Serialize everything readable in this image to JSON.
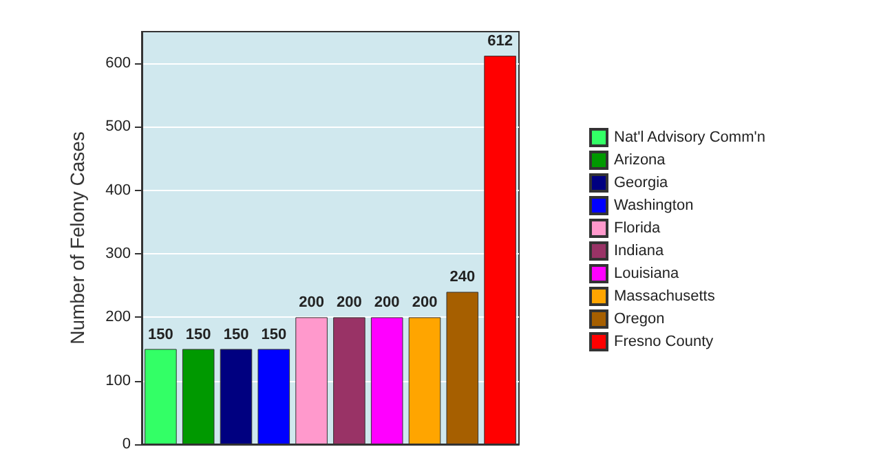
{
  "chart_data": {
    "type": "bar",
    "ylabel": "Number of Felony Cases",
    "categories": [
      null,
      null,
      null,
      null,
      null,
      null,
      null,
      null,
      null,
      null
    ],
    "series": [
      {
        "name": "Nat'l Advisory Comm'n",
        "color": "#33ff66",
        "values": [
          150,
          null,
          null,
          null,
          null,
          null,
          null,
          null,
          null,
          null
        ]
      },
      {
        "name": "Arizona",
        "color": "#009900",
        "values": [
          null,
          150,
          null,
          null,
          null,
          null,
          null,
          null,
          null,
          null
        ]
      },
      {
        "name": "Georgia",
        "color": "#000080",
        "values": [
          null,
          null,
          150,
          null,
          null,
          null,
          null,
          null,
          null,
          null
        ]
      },
      {
        "name": "Washington",
        "color": "#0000ff",
        "values": [
          null,
          null,
          null,
          150,
          null,
          null,
          null,
          null,
          null,
          null
        ]
      },
      {
        "name": "Florida",
        "color": "#ff99cc",
        "values": [
          null,
          null,
          null,
          null,
          200,
          null,
          null,
          null,
          null,
          null
        ]
      },
      {
        "name": "Indiana",
        "color": "#993366",
        "values": [
          null,
          null,
          null,
          null,
          null,
          200,
          null,
          null,
          null,
          null
        ]
      },
      {
        "name": "Louisiana",
        "color": "#ff00ff",
        "values": [
          null,
          null,
          null,
          null,
          null,
          null,
          200,
          null,
          null,
          null
        ]
      },
      {
        "name": "Massachusetts",
        "color": "#ffa500",
        "values": [
          null,
          null,
          null,
          null,
          null,
          null,
          null,
          200,
          null,
          null
        ]
      },
      {
        "name": "Oregon",
        "color": "#a65f00",
        "values": [
          null,
          null,
          null,
          null,
          null,
          null,
          null,
          null,
          240,
          null
        ]
      },
      {
        "name": "Fresno County",
        "color": "#ff0000",
        "values": [
          null,
          null,
          null,
          null,
          null,
          null,
          null,
          null,
          null,
          612
        ]
      }
    ],
    "ylim": [
      0,
      650
    ],
    "yticks": [
      0,
      100,
      200,
      300,
      400,
      500,
      600
    ],
    "grid": "y",
    "legend": "right",
    "data_labels": true
  }
}
